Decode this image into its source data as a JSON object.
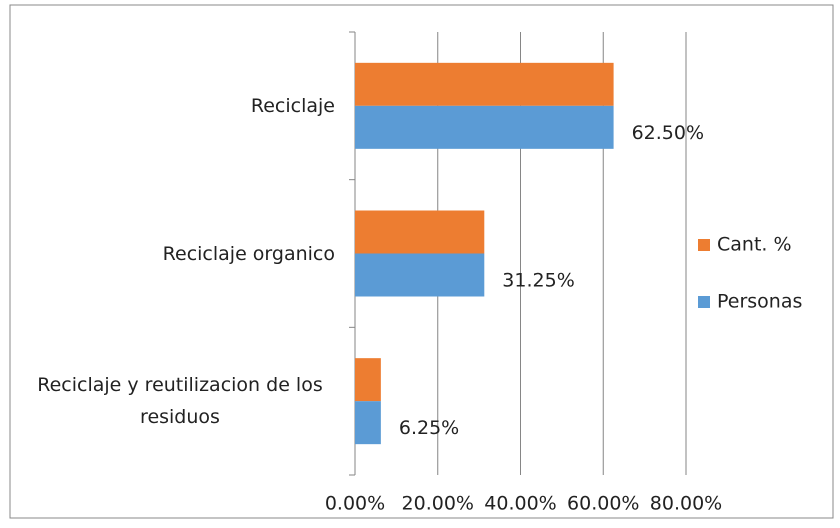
{
  "chart_data": {
    "type": "bar",
    "orientation": "horizontal",
    "categories": [
      "Reciclaje",
      "Reciclaje organico",
      "Reciclaje y reutilizacion de los residuos"
    ],
    "series": [
      {
        "name": "Cant. %",
        "color": "#ed7d31",
        "values": [
          62.5,
          31.25,
          6.25
        ]
      },
      {
        "name": "Personas",
        "color": "#5b9bd5",
        "values": [
          62.5,
          31.25,
          6.25
        ],
        "value_labels": [
          "62.50%",
          "31.25%",
          "6.25%"
        ]
      }
    ],
    "xlim": [
      0,
      80
    ],
    "xticks": [
      {
        "value": 0,
        "label": "0.00%"
      },
      {
        "value": 20,
        "label": "20.00%"
      },
      {
        "value": 40,
        "label": "40.00%"
      },
      {
        "value": 60,
        "label": "60.00%"
      },
      {
        "value": 80,
        "label": "80.00%"
      }
    ],
    "grid": true,
    "legend": "right"
  }
}
